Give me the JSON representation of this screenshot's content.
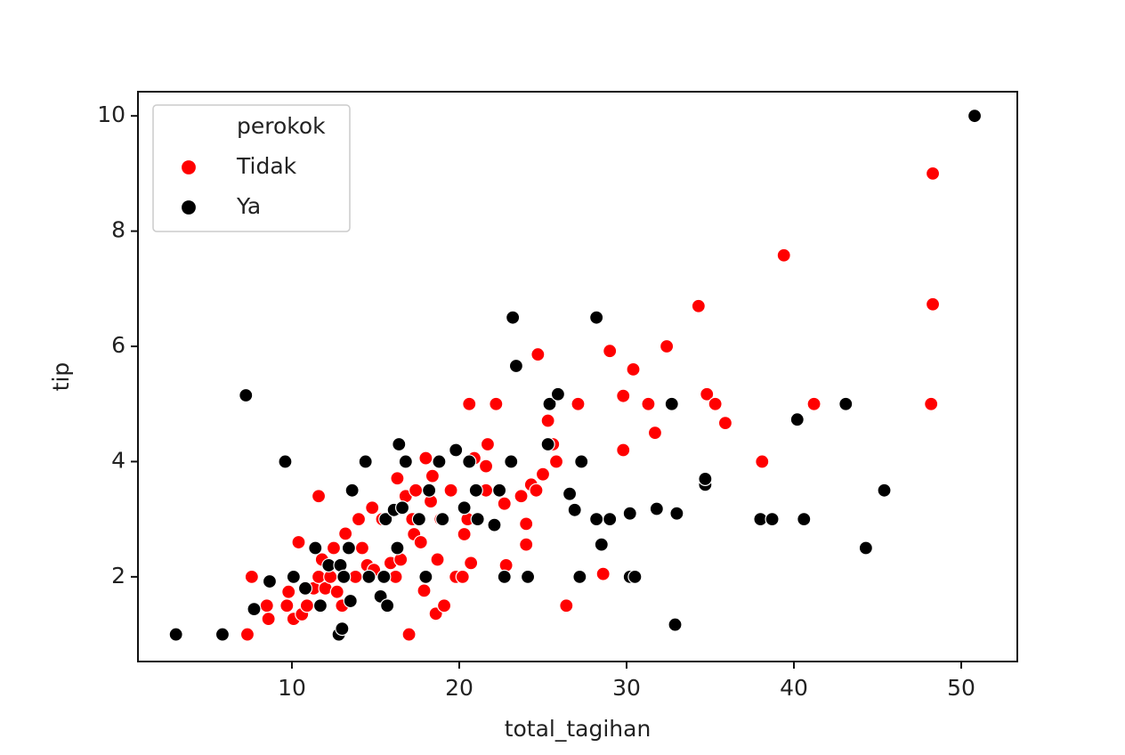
{
  "chart_data": {
    "type": "scatter",
    "xlabel": "total_tagihan",
    "ylabel": "tip",
    "legend_title": "perokok",
    "legend": "upper left",
    "xlim": [
      0.8,
      53.35
    ],
    "ylim": [
      0.53,
      10.42
    ],
    "xticks": [
      10,
      20,
      30,
      40,
      50
    ],
    "yticks": [
      2,
      4,
      6,
      8,
      10
    ],
    "series": [
      {
        "name": "Tidak",
        "color": "#ff0000",
        "x": [
          7.34,
          7.6,
          8.5,
          8.6,
          9.7,
          9.8,
          10.1,
          10.4,
          10.6,
          10.9,
          11.3,
          11.6,
          11.6,
          11.8,
          12.0,
          12.3,
          12.5,
          12.7,
          13.0,
          13.2,
          13.8,
          13.99,
          14.2,
          14.5,
          14.8,
          14.9,
          15.4,
          15.9,
          16.2,
          16.3,
          16.5,
          16.8,
          17.0,
          17.2,
          17.3,
          17.4,
          17.7,
          17.9,
          18.0,
          18.3,
          18.4,
          18.6,
          18.7,
          18.9,
          19.1,
          19.5,
          19.8,
          20.2,
          20.3,
          20.5,
          20.6,
          20.7,
          20.9,
          21.6,
          21.6,
          21.7,
          22.2,
          22.7,
          22.8,
          23.7,
          24.0,
          24.0,
          24.3,
          24.6,
          24.7,
          25.0,
          25.3,
          25.6,
          25.8,
          26.4,
          27.1,
          28.6,
          29.0,
          29.8,
          29.8,
          30.4,
          31.3,
          31.7,
          32.4,
          34.3,
          34.8,
          35.3,
          35.9,
          38.1,
          39.4,
          41.2,
          48.2,
          48.3,
          48.3
        ],
        "y": [
          1.0,
          2.0,
          1.5,
          1.27,
          1.5,
          1.74,
          1.27,
          2.6,
          1.35,
          1.5,
          1.8,
          3.4,
          2.0,
          2.3,
          1.8,
          2.0,
          2.5,
          1.74,
          1.5,
          2.75,
          2.0,
          3.0,
          2.5,
          2.2,
          3.2,
          2.12,
          3.0,
          2.24,
          2.0,
          3.71,
          2.3,
          3.4,
          1.0,
          3.0,
          2.74,
          3.5,
          2.6,
          1.76,
          4.06,
          3.31,
          3.75,
          1.36,
          2.3,
          3.0,
          1.5,
          3.5,
          2.0,
          2.0,
          2.74,
          3.0,
          5.0,
          2.24,
          4.06,
          3.5,
          3.92,
          4.3,
          5.0,
          3.27,
          2.2,
          3.4,
          2.92,
          2.56,
          3.6,
          3.5,
          5.86,
          3.78,
          4.71,
          4.3,
          4.0,
          1.5,
          5.0,
          2.05,
          5.92,
          5.14,
          4.2,
          5.6,
          5.0,
          4.5,
          6.0,
          6.7,
          5.17,
          5.0,
          4.67,
          4.0,
          7.58,
          5.0,
          5.0,
          6.73,
          9.0
        ]
      },
      {
        "name": "Ya",
        "color": "#000000",
        "x": [
          3.07,
          5.85,
          7.25,
          7.74,
          8.67,
          9.6,
          10.1,
          10.8,
          11.4,
          11.7,
          12.2,
          12.8,
          13.0,
          12.9,
          13.1,
          13.4,
          13.5,
          13.6,
          14.4,
          14.6,
          15.3,
          15.5,
          15.6,
          15.7,
          16.1,
          16.3,
          16.4,
          16.6,
          16.8,
          17.6,
          18.0,
          18.2,
          18.8,
          19.0,
          19.8,
          20.3,
          20.6,
          21.0,
          21.1,
          22.1,
          22.4,
          22.7,
          23.1,
          23.2,
          23.4,
          24.1,
          25.3,
          25.4,
          25.9,
          26.6,
          26.9,
          27.2,
          27.3,
          28.2,
          28.2,
          28.5,
          29.0,
          30.2,
          30.2,
          30.5,
          31.8,
          32.7,
          32.9,
          33.0,
          34.7,
          34.7,
          38.0,
          38.7,
          40.2,
          40.6,
          43.1,
          44.3,
          45.4,
          50.8
        ],
        "y": [
          1.0,
          1.0,
          5.15,
          1.44,
          1.92,
          4.0,
          2.0,
          1.8,
          2.5,
          1.5,
          2.2,
          1.0,
          1.1,
          2.2,
          2.0,
          2.5,
          1.58,
          3.5,
          4.0,
          2.0,
          1.66,
          2.0,
          3.0,
          1.5,
          3.16,
          2.5,
          4.3,
          3.2,
          4.0,
          3.0,
          2.0,
          3.5,
          4.0,
          3.0,
          4.2,
          3.2,
          4.0,
          3.5,
          3.0,
          2.9,
          3.5,
          2.0,
          4.0,
          6.5,
          5.66,
          2.0,
          4.3,
          5.0,
          5.17,
          3.44,
          3.16,
          2.0,
          4.0,
          6.5,
          3.0,
          2.56,
          3.0,
          3.1,
          2.0,
          2.0,
          3.18,
          5.0,
          1.17,
          3.1,
          3.6,
          3.7,
          3.0,
          3.0,
          4.73,
          3.0,
          5.0,
          2.5,
          3.5,
          10.0
        ]
      }
    ]
  }
}
